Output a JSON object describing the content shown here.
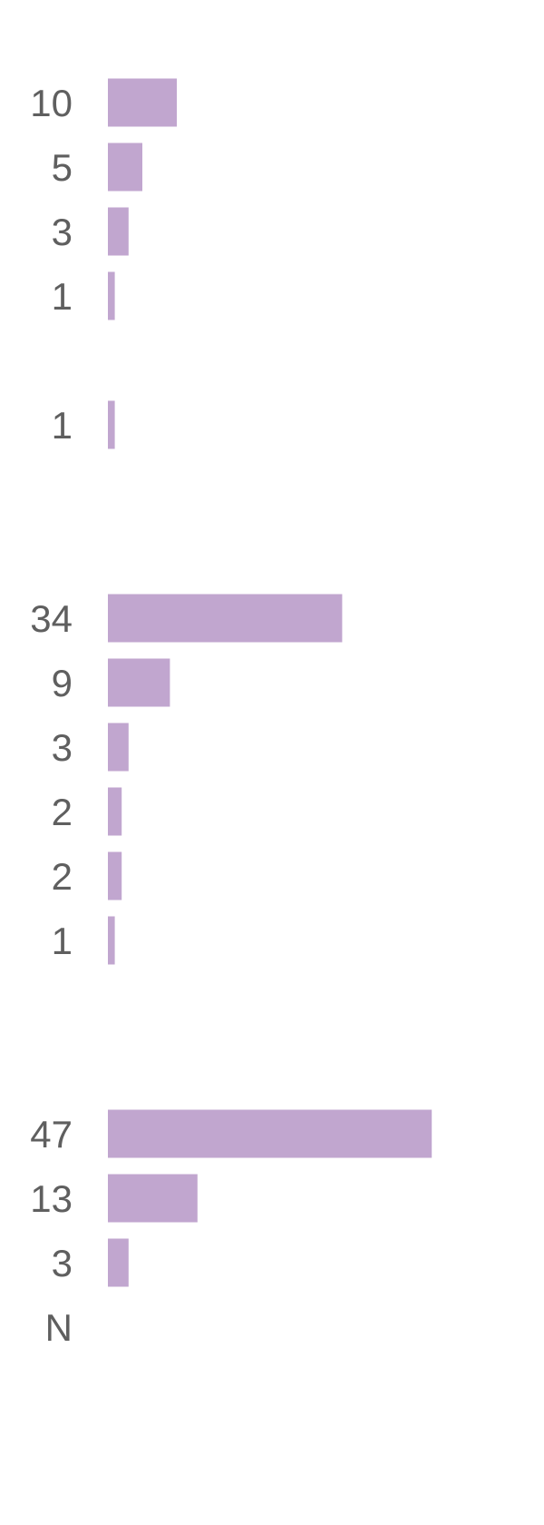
{
  "chart_data": {
    "type": "bar",
    "orientation": "horizontal",
    "bar_color": "#c1a6cf",
    "label_color": "#5f5f5f",
    "background": "#ffffff",
    "x_range": [
      0,
      54
    ],
    "groups": [
      {
        "bars": [
          {
            "label": "10",
            "value": 10
          },
          {
            "label": "5",
            "value": 5
          },
          {
            "label": "3",
            "value": 3
          },
          {
            "label": "1",
            "value": 1
          }
        ]
      },
      {
        "bars": [
          {
            "label": "1",
            "value": 1
          }
        ]
      },
      {
        "bars": [
          {
            "label": "34",
            "value": 34
          },
          {
            "label": "9",
            "value": 9
          },
          {
            "label": "3",
            "value": 3
          },
          {
            "label": "2",
            "value": 2
          },
          {
            "label": "2",
            "value": 2
          },
          {
            "label": "1",
            "value": 1
          }
        ]
      },
      {
        "bars": [
          {
            "label": "47",
            "value": 47
          },
          {
            "label": "13",
            "value": 13
          },
          {
            "label": "3",
            "value": 3
          },
          {
            "label": "N",
            "value": null
          }
        ]
      }
    ]
  }
}
